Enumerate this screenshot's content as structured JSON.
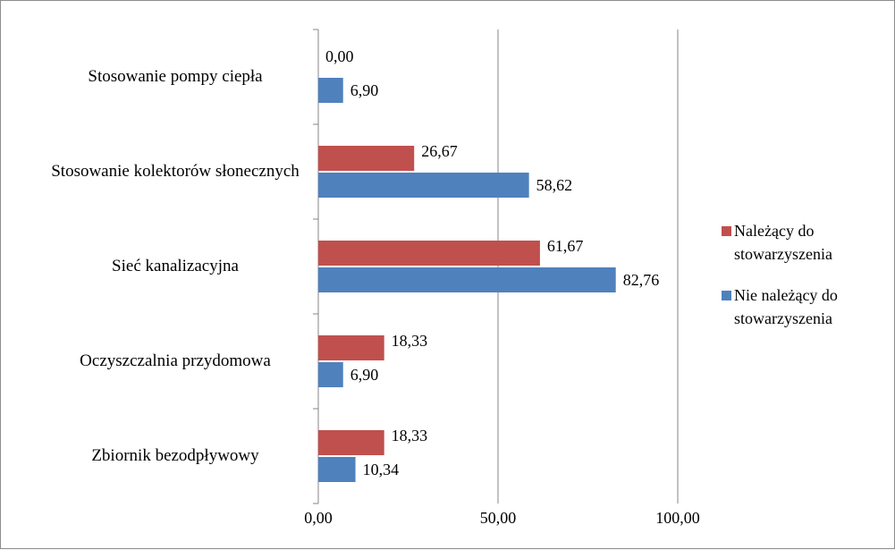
{
  "chart_data": {
    "type": "bar",
    "orientation": "horizontal",
    "categories": [
      "Stosowanie pompy ciepła",
      "Stosowanie kolektorów słonecznych",
      "Sieć kanalizacyjna",
      "Oczyszczalnia przydomowa",
      "Zbiornik bezodpływowy"
    ],
    "series": [
      {
        "name": "Należący do stowarzyszenia",
        "color": "#c0504d",
        "values": [
          0,
          26.67,
          61.67,
          18.33,
          18.33
        ],
        "value_labels": [
          "0,00",
          "26,67",
          "61,67",
          "18,33",
          "18,33"
        ]
      },
      {
        "name": "Nie należący do stowarzyszenia",
        "color": "#4f81bd",
        "values": [
          6.9,
          58.62,
          82.76,
          6.9,
          10.34
        ],
        "value_labels": [
          "6,90",
          "58,62",
          "82,76",
          "6,90",
          "10,34"
        ]
      }
    ],
    "xlim": [
      0,
      100
    ],
    "xticks": [
      {
        "value": 0,
        "label": "0,00"
      },
      {
        "value": 50,
        "label": "50,00"
      },
      {
        "value": 100,
        "label": "100,00"
      }
    ],
    "grid": true,
    "legend": "right"
  }
}
